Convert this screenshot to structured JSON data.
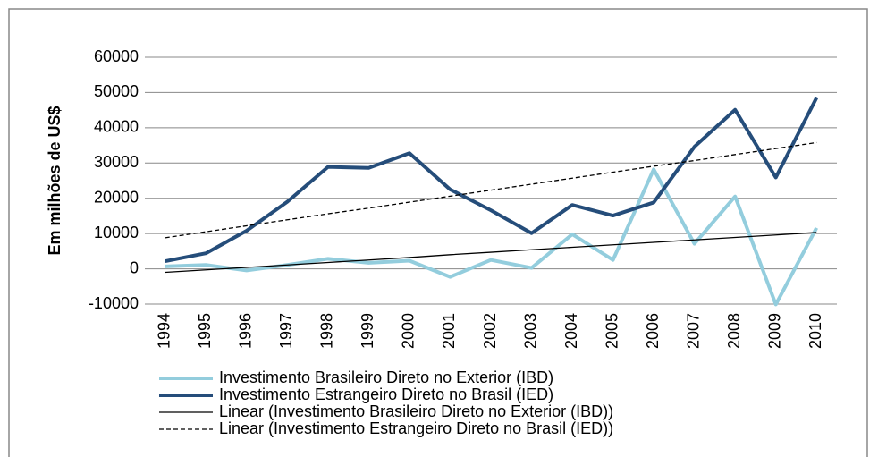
{
  "chart_data": {
    "type": "line",
    "y_label": "Em milhões de US$",
    "categories": [
      "1994",
      "1995",
      "1996",
      "1997",
      "1998",
      "1999",
      "2000",
      "2001",
      "2002",
      "2003",
      "2004",
      "2005",
      "2006",
      "2007",
      "2008",
      "2009",
      "2010"
    ],
    "series": [
      {
        "name": "Investimento Brasileiro Direto no Exterior (IBD)",
        "color": "#93cddd",
        "line_width": 4,
        "dashed": false,
        "values": [
          690,
          1100,
          -470,
          1100,
          2850,
          1700,
          2300,
          -2300,
          2500,
          250,
          9800,
          2500,
          28200,
          7100,
          20500,
          -10100,
          11600
        ]
      },
      {
        "name": "Investimento Estrangeiro Direto no Brasil (IED)",
        "color": "#254d7a",
        "line_width": 4,
        "dashed": false,
        "values": [
          2150,
          4400,
          10800,
          19000,
          28900,
          28600,
          32800,
          22500,
          16600,
          10100,
          18100,
          15100,
          18800,
          34600,
          45100,
          25900,
          48500
        ]
      },
      {
        "name": "Linear (Investimento Brasileiro Direto no Exterior (IBD))",
        "color": "#000000",
        "line_width": 1.3,
        "dashed": false,
        "values": [
          -1000,
          -300,
          400,
          1100,
          1800,
          2500,
          3200,
          4000,
          4700,
          5400,
          6100,
          6800,
          7500,
          8200,
          8900,
          9600,
          10300
        ]
      },
      {
        "name": "Linear (Investimento Estrangeiro Direto no Brasil (IED))",
        "color": "#000000",
        "line_width": 1.3,
        "dashed": true,
        "values": [
          8800,
          10500,
          12200,
          13900,
          15600,
          17200,
          18900,
          20600,
          22300,
          24000,
          25700,
          27400,
          29100,
          30700,
          32400,
          34100,
          35800
        ]
      }
    ],
    "ylim": [
      -10000,
      60000
    ],
    "yticks": [
      -10000,
      0,
      10000,
      20000,
      30000,
      40000,
      50000,
      60000
    ],
    "grid": true,
    "legend": "bottom"
  }
}
